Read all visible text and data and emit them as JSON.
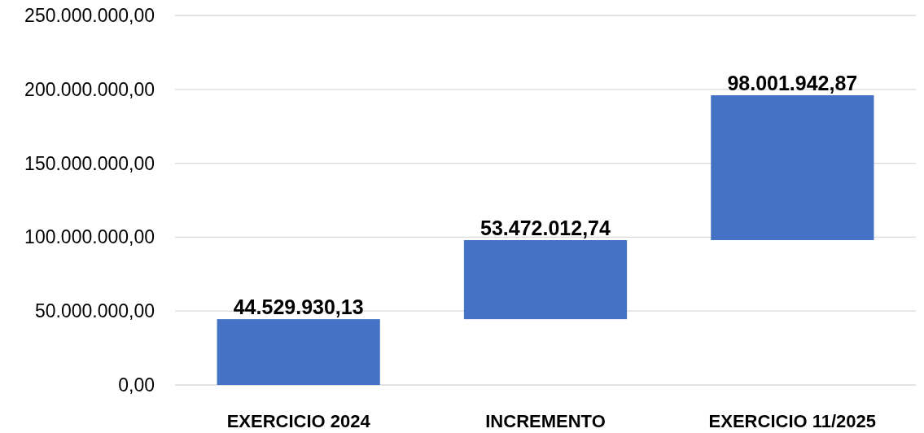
{
  "chart_data": {
    "type": "bar",
    "categories": [
      "EXERCICIO 2024",
      "INCREMENTO",
      "EXERCICIO 11/2025"
    ],
    "values": [
      44529930.13,
      53472012.74,
      98001942.87
    ],
    "base": [
      0,
      44529930.13,
      98001942.87
    ],
    "color": "#4472c4",
    "value_labels": [
      "44.529.930,13",
      "53.472.012,74",
      "98.001.942,87"
    ],
    "ylim": [
      0,
      250000000
    ],
    "yticks": [
      {
        "value": 0,
        "label": "0,00"
      },
      {
        "value": 50000000,
        "label": "50.000.000,00"
      },
      {
        "value": 100000000,
        "label": "100.000.000,00"
      },
      {
        "value": 150000000,
        "label": "150.000.000,00"
      },
      {
        "value": 200000000,
        "label": "200.000.000,00"
      },
      {
        "value": 250000000,
        "label": "250.000.000,00"
      }
    ],
    "grid": "y"
  }
}
